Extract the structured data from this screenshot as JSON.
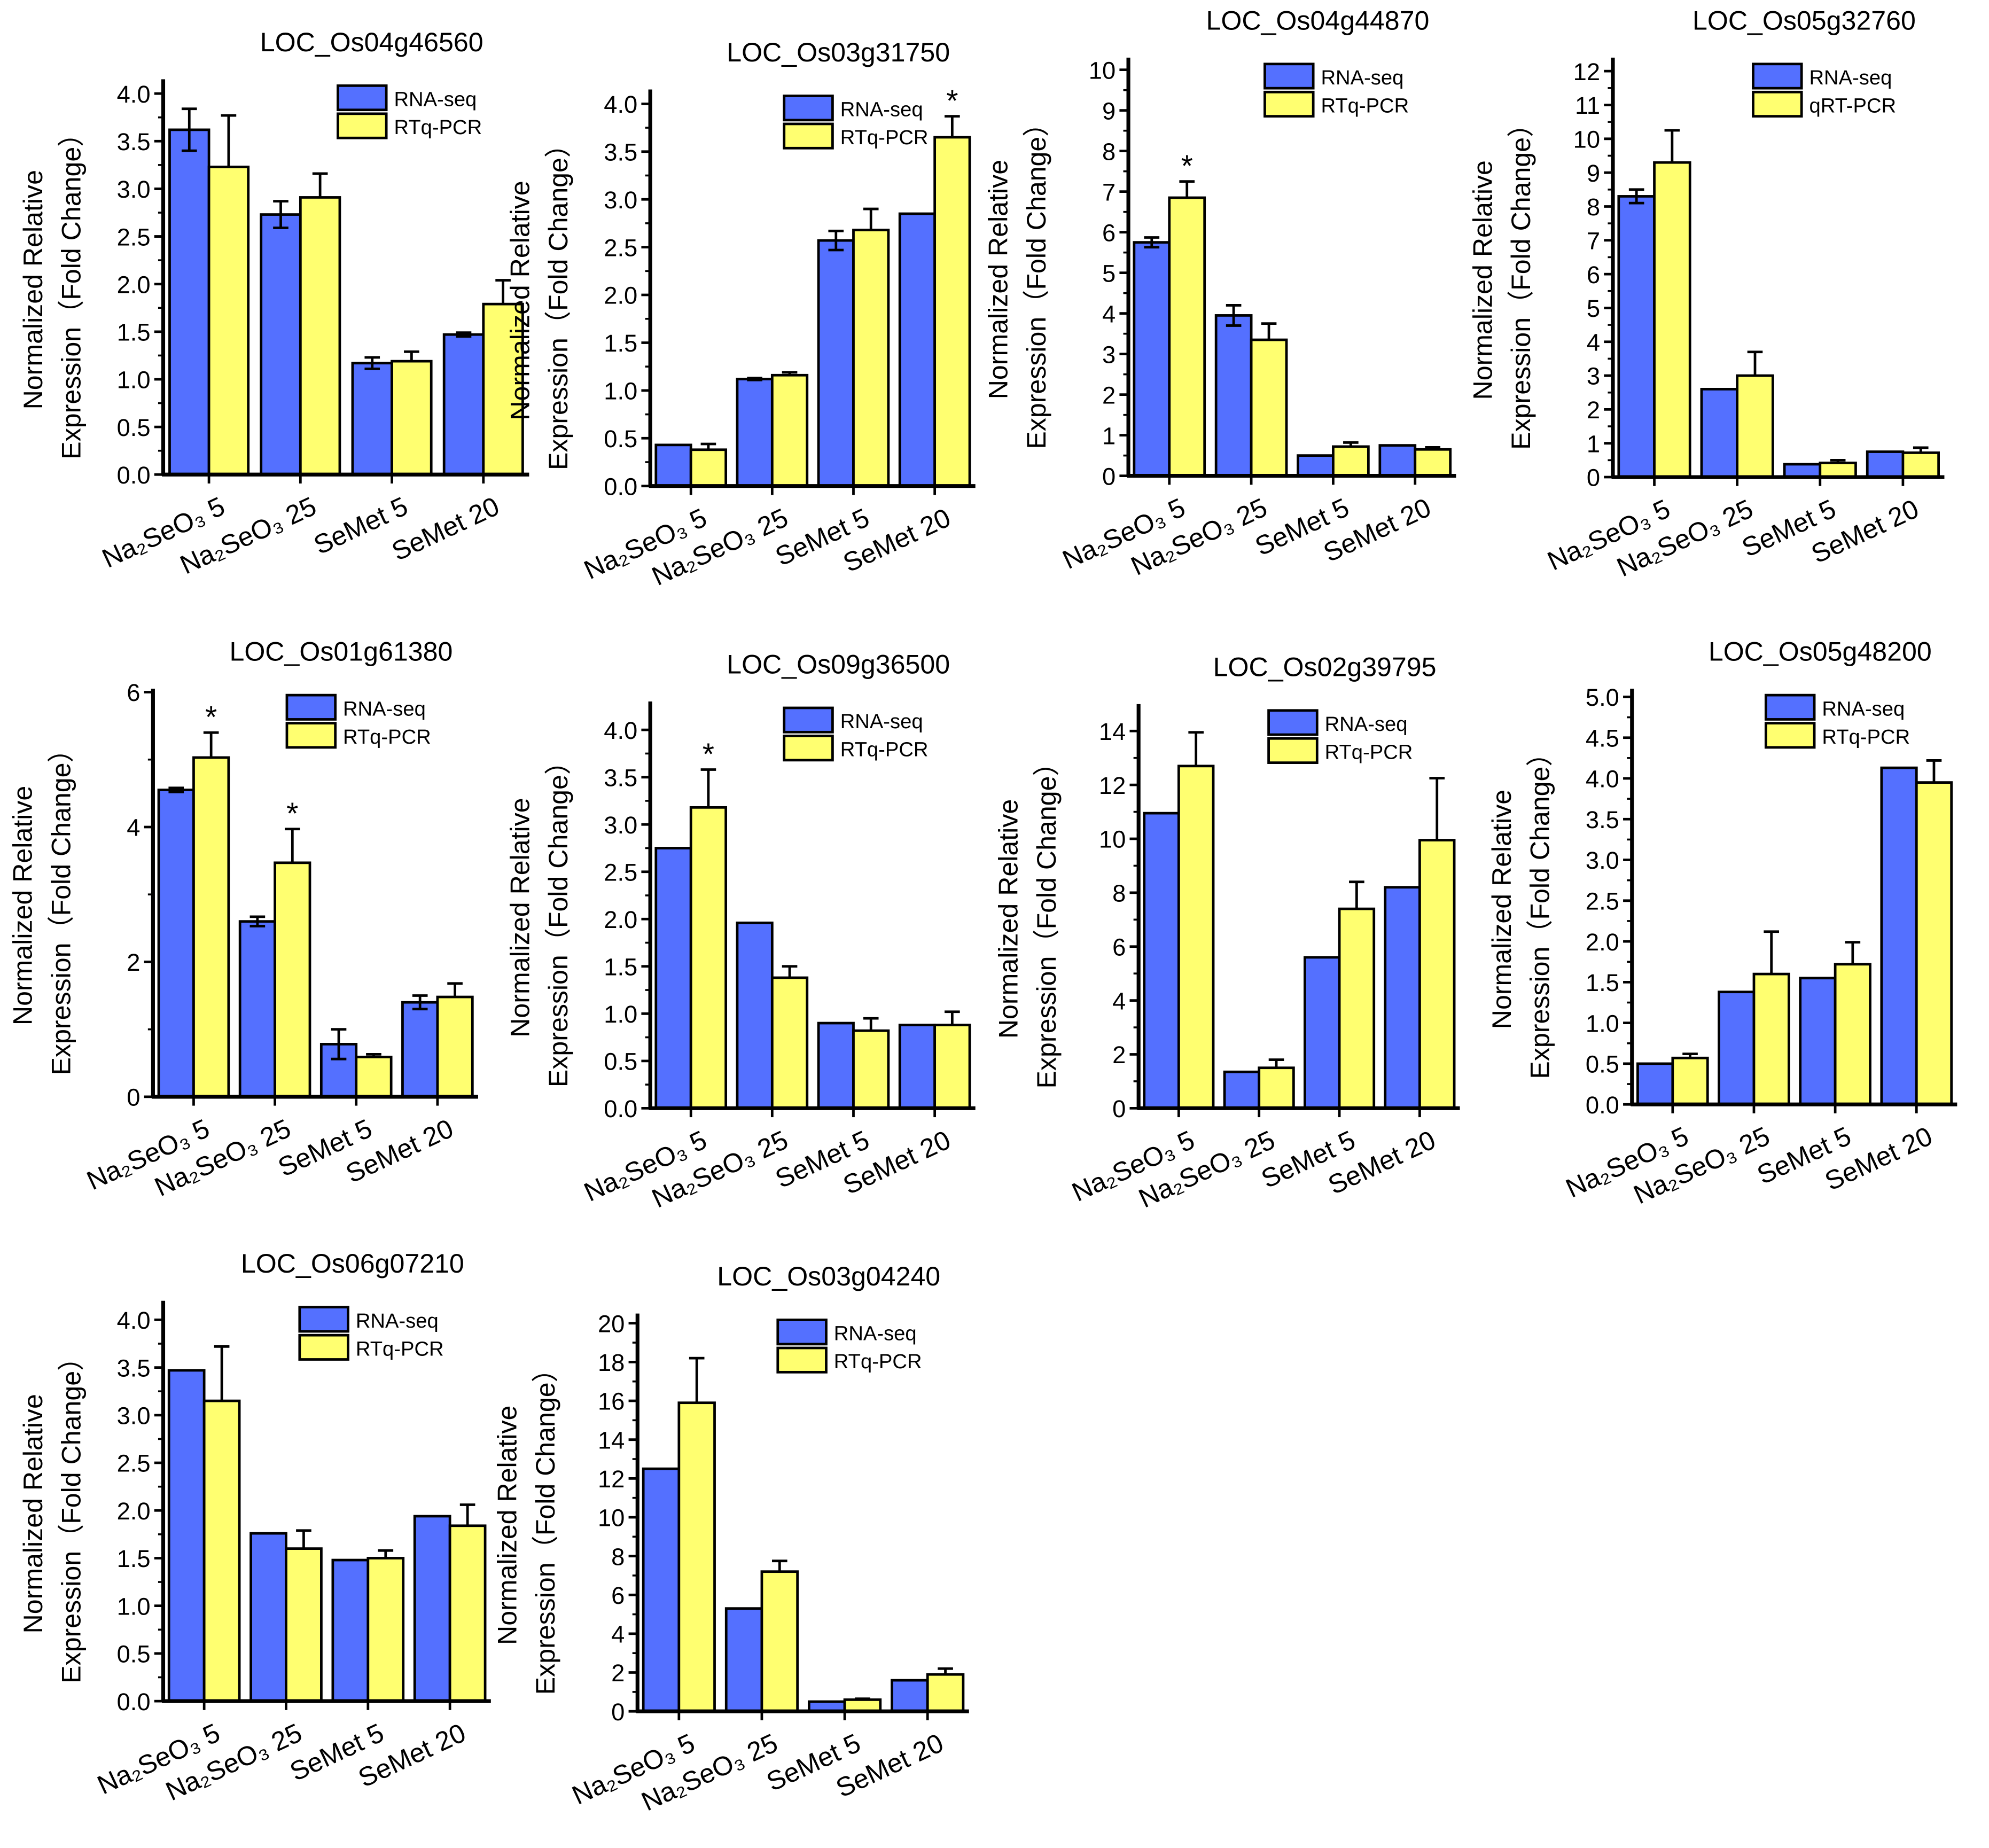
{
  "colors": {
    "rna": "#5470FF",
    "qpcr": "#FFFF70",
    "stroke": "#000000"
  },
  "chart_data": [
    {
      "type": "bar",
      "title": "LOC_Os04g46560",
      "ylabel": [
        "Normalized  Relative",
        "Expression（Fold Change）"
      ],
      "categories": [
        "Na₂SeO₃ 5",
        "Na₂SeO₃ 25",
        "SeMet 5",
        "SeMet 20"
      ],
      "ylim": [
        0,
        4.15
      ],
      "ytick_step": 0.5,
      "ytick_max": 4.0,
      "ytick_decimals": 1,
      "series": [
        {
          "name": "RNA-seq",
          "values": [
            3.62,
            2.73,
            1.17,
            1.47
          ],
          "errors": [
            0.22,
            0.14,
            0.06,
            0.02
          ],
          "stars": []
        },
        {
          "name": "RTq-PCR",
          "values": [
            3.23,
            2.91,
            1.19,
            1.79
          ],
          "errors": [
            0.54,
            0.25,
            0.1,
            0.25
          ],
          "stars": []
        }
      ]
    },
    {
      "type": "bar",
      "title": "LOC_Os03g31750",
      "ylabel": [
        "Normalized  Relative",
        "Expression（Fold Change）"
      ],
      "categories": [
        "Na₂SeO₃ 5",
        "Na₂SeO₃ 25",
        "SeMet 5",
        "SeMet 20"
      ],
      "ylim": [
        0,
        4.15
      ],
      "ytick_step": 0.5,
      "ytick_max": 4.0,
      "ytick_decimals": 1,
      "series": [
        {
          "name": "RNA-seq",
          "values": [
            0.43,
            1.12,
            2.57,
            2.85
          ],
          "errors": [
            0,
            0.01,
            0.1,
            0
          ],
          "stars": []
        },
        {
          "name": "RTq-PCR",
          "values": [
            0.38,
            1.16,
            2.68,
            3.65
          ],
          "errors": [
            0.06,
            0.03,
            0.22,
            0.22
          ],
          "stars": [
            3
          ]
        }
      ]
    },
    {
      "type": "bar",
      "title": "LOC_Os04g44870",
      "ylabel": [
        "Normalized  Relative",
        "Expression（Fold Change）"
      ],
      "categories": [
        "Na₂SeO₃ 5",
        "Na₂SeO₃ 25",
        "SeMet 5",
        "SeMet 20"
      ],
      "ylim": [
        0,
        10.3
      ],
      "ytick_step": 1,
      "ytick_max": 10,
      "ytick_decimals": 0,
      "series": [
        {
          "name": "RNA-seq",
          "values": [
            5.75,
            3.95,
            0.5,
            0.75
          ],
          "errors": [
            0.12,
            0.25,
            0,
            0
          ],
          "stars": []
        },
        {
          "name": "RTq-PCR",
          "values": [
            6.85,
            3.35,
            0.72,
            0.65
          ],
          "errors": [
            0.4,
            0.4,
            0.1,
            0.05
          ],
          "stars": [
            0
          ]
        }
      ]
    },
    {
      "type": "bar",
      "title": "LOC_Os05g32760",
      "ylabel": [
        "Normalized  Relative",
        "Expression（Fold Change）"
      ],
      "categories": [
        "Na₂SeO₃ 5",
        "Na₂SeO₃ 25",
        "SeMet 5",
        "SeMet 20"
      ],
      "ylim": [
        0,
        12.4
      ],
      "ytick_step": 1,
      "ytick_max": 12,
      "ytick_decimals": 0,
      "series": [
        {
          "name": "RNA-seq",
          "values": [
            8.3,
            2.6,
            0.38,
            0.75
          ],
          "errors": [
            0.2,
            0,
            0,
            0
          ],
          "stars": []
        },
        {
          "name": "qRT-PCR",
          "values": [
            9.3,
            3.0,
            0.42,
            0.72
          ],
          "errors": [
            0.95,
            0.7,
            0.08,
            0.15
          ],
          "stars": []
        }
      ]
    },
    {
      "type": "bar",
      "title": "LOC_Os01g61380",
      "ylabel": [
        "Normalized  Relative",
        "Expression（Fold Change）"
      ],
      "categories": [
        "Na₂SeO₃ 5",
        "Na₂SeO₃ 25",
        "SeMet 5",
        "SeMet 20"
      ],
      "ylim": [
        0,
        6.05
      ],
      "ytick_step": 2,
      "ytick_max": 6,
      "ytick_decimals": 0,
      "series": [
        {
          "name": "RNA-seq",
          "values": [
            4.55,
            2.6,
            0.78,
            1.4
          ],
          "errors": [
            0.03,
            0.07,
            0.22,
            0.1
          ],
          "stars": []
        },
        {
          "name": "RTq-PCR",
          "values": [
            5.03,
            3.47,
            0.59,
            1.48
          ],
          "errors": [
            0.37,
            0.5,
            0.04,
            0.2
          ],
          "stars": [
            0,
            1
          ]
        }
      ]
    },
    {
      "type": "bar",
      "title": "LOC_Os09g36500",
      "ylabel": [
        "Normalized  Relative",
        "Expression（Fold Change）"
      ],
      "categories": [
        "Na₂SeO₃ 5",
        "Na₂SeO₃ 25",
        "SeMet 5",
        "SeMet 20"
      ],
      "ylim": [
        0,
        4.3
      ],
      "ytick_step": 0.5,
      "ytick_max": 4.0,
      "ytick_decimals": 1,
      "series": [
        {
          "name": "RNA-seq",
          "values": [
            2.75,
            1.96,
            0.9,
            0.88
          ],
          "errors": [
            0,
            0,
            0,
            0
          ],
          "stars": []
        },
        {
          "name": "RTq-PCR",
          "values": [
            3.18,
            1.38,
            0.82,
            0.88
          ],
          "errors": [
            0.4,
            0.12,
            0.13,
            0.14
          ],
          "stars": [
            0
          ]
        }
      ]
    },
    {
      "type": "bar",
      "title": "LOC_Os02g39795",
      "ylabel": [
        "Normalized  Relative",
        "Expression（Fold Change）"
      ],
      "categories": [
        "Na₂SeO₃ 5",
        "Na₂SeO₃ 25",
        "SeMet 5",
        "SeMet 20"
      ],
      "ylim": [
        0,
        15
      ],
      "ytick_step": 2,
      "ytick_max": 14,
      "ytick_decimals": 0,
      "series": [
        {
          "name": "RNA-seq",
          "values": [
            10.95,
            1.35,
            5.6,
            8.2
          ],
          "errors": [
            0,
            0,
            0,
            0
          ],
          "stars": []
        },
        {
          "name": "RTq-PCR",
          "values": [
            12.7,
            1.5,
            7.4,
            9.95
          ],
          "errors": [
            1.25,
            0.3,
            1.0,
            2.3
          ],
          "stars": []
        }
      ]
    },
    {
      "type": "bar",
      "title": "LOC_Os05g48200",
      "ylabel": [
        "Normalized  Relative",
        "Expression（Fold Change）"
      ],
      "categories": [
        "Na₂SeO₃ 5",
        "Na₂SeO₃ 25",
        "SeMet 5",
        "SeMet 20"
      ],
      "ylim": [
        0,
        5.1
      ],
      "ytick_step": 0.5,
      "ytick_max": 5.0,
      "ytick_decimals": 1,
      "series": [
        {
          "name": "RNA-seq",
          "values": [
            0.5,
            1.38,
            1.55,
            4.13
          ],
          "errors": [
            0,
            0,
            0,
            0
          ],
          "stars": []
        },
        {
          "name": "RTq-PCR",
          "values": [
            0.57,
            1.6,
            1.72,
            3.95
          ],
          "errors": [
            0.05,
            0.52,
            0.27,
            0.27
          ],
          "stars": []
        }
      ]
    },
    {
      "type": "bar",
      "title": "LOC_Os06g07210",
      "ylabel": [
        "Normalized  Relative",
        "Expression（Fold Change）"
      ],
      "categories": [
        "Na₂SeO₃ 5",
        "Na₂SeO₃ 25",
        "SeMet 5",
        "SeMet 20"
      ],
      "ylim": [
        0,
        4.2
      ],
      "ytick_step": 0.5,
      "ytick_max": 4.0,
      "ytick_decimals": 1,
      "series": [
        {
          "name": "RNA-seq",
          "values": [
            3.47,
            1.76,
            1.48,
            1.94
          ],
          "errors": [
            0,
            0,
            0,
            0
          ],
          "stars": []
        },
        {
          "name": "RTq-PCR",
          "values": [
            3.15,
            1.6,
            1.5,
            1.84
          ],
          "errors": [
            0.57,
            0.19,
            0.08,
            0.22
          ],
          "stars": []
        }
      ]
    },
    {
      "type": "bar",
      "title": "LOC_Os03g04240",
      "ylabel": [
        "Normalized  Relative",
        "Expression（Fold Change）"
      ],
      "categories": [
        "Na₂SeO₃ 5",
        "Na₂SeO₃ 25",
        "SeMet 5",
        "SeMet 20"
      ],
      "ylim": [
        0,
        20.5
      ],
      "ytick_step": 2,
      "ytick_max": 20,
      "ytick_decimals": 0,
      "series": [
        {
          "name": "RNA-seq",
          "values": [
            12.5,
            5.3,
            0.5,
            1.6
          ],
          "errors": [
            0,
            0,
            0,
            0
          ],
          "stars": []
        },
        {
          "name": "RTq-PCR",
          "values": [
            15.9,
            7.2,
            0.6,
            1.9
          ],
          "errors": [
            2.3,
            0.55,
            0.05,
            0.3
          ],
          "stars": []
        }
      ]
    }
  ],
  "star_symbol": "*"
}
